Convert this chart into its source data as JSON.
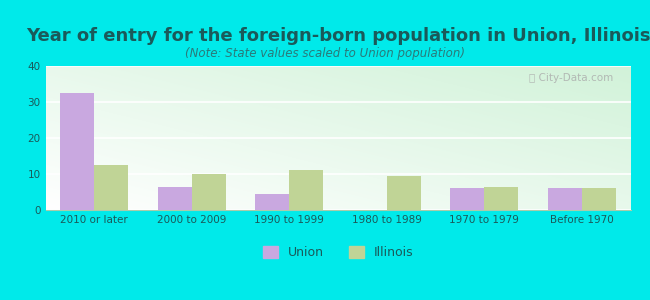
{
  "title": "Year of entry for the foreign-born population in Union, Illinois",
  "subtitle": "(Note: State values scaled to Union population)",
  "categories": [
    "2010 or later",
    "2000 to 2009",
    "1990 to 1999",
    "1980 to 1989",
    "1970 to 1979",
    "Before 1970"
  ],
  "union_values": [
    32.5,
    6.5,
    4.5,
    0,
    6.0,
    6.0
  ],
  "illinois_values": [
    12.5,
    10.0,
    11.0,
    9.5,
    6.5,
    6.0
  ],
  "union_color": "#c9a8e0",
  "illinois_color": "#c0d496",
  "background_color": "#00eaea",
  "ylim": [
    0,
    40
  ],
  "yticks": [
    0,
    10,
    20,
    30,
    40
  ],
  "bar_width": 0.35,
  "legend_labels": [
    "Union",
    "Illinois"
  ],
  "title_fontsize": 13,
  "subtitle_fontsize": 8.5,
  "tick_fontsize": 7.5,
  "legend_fontsize": 9,
  "title_color": "#1a5a5a",
  "subtitle_color": "#2a7a7a",
  "tick_color": "#1a5a5a"
}
